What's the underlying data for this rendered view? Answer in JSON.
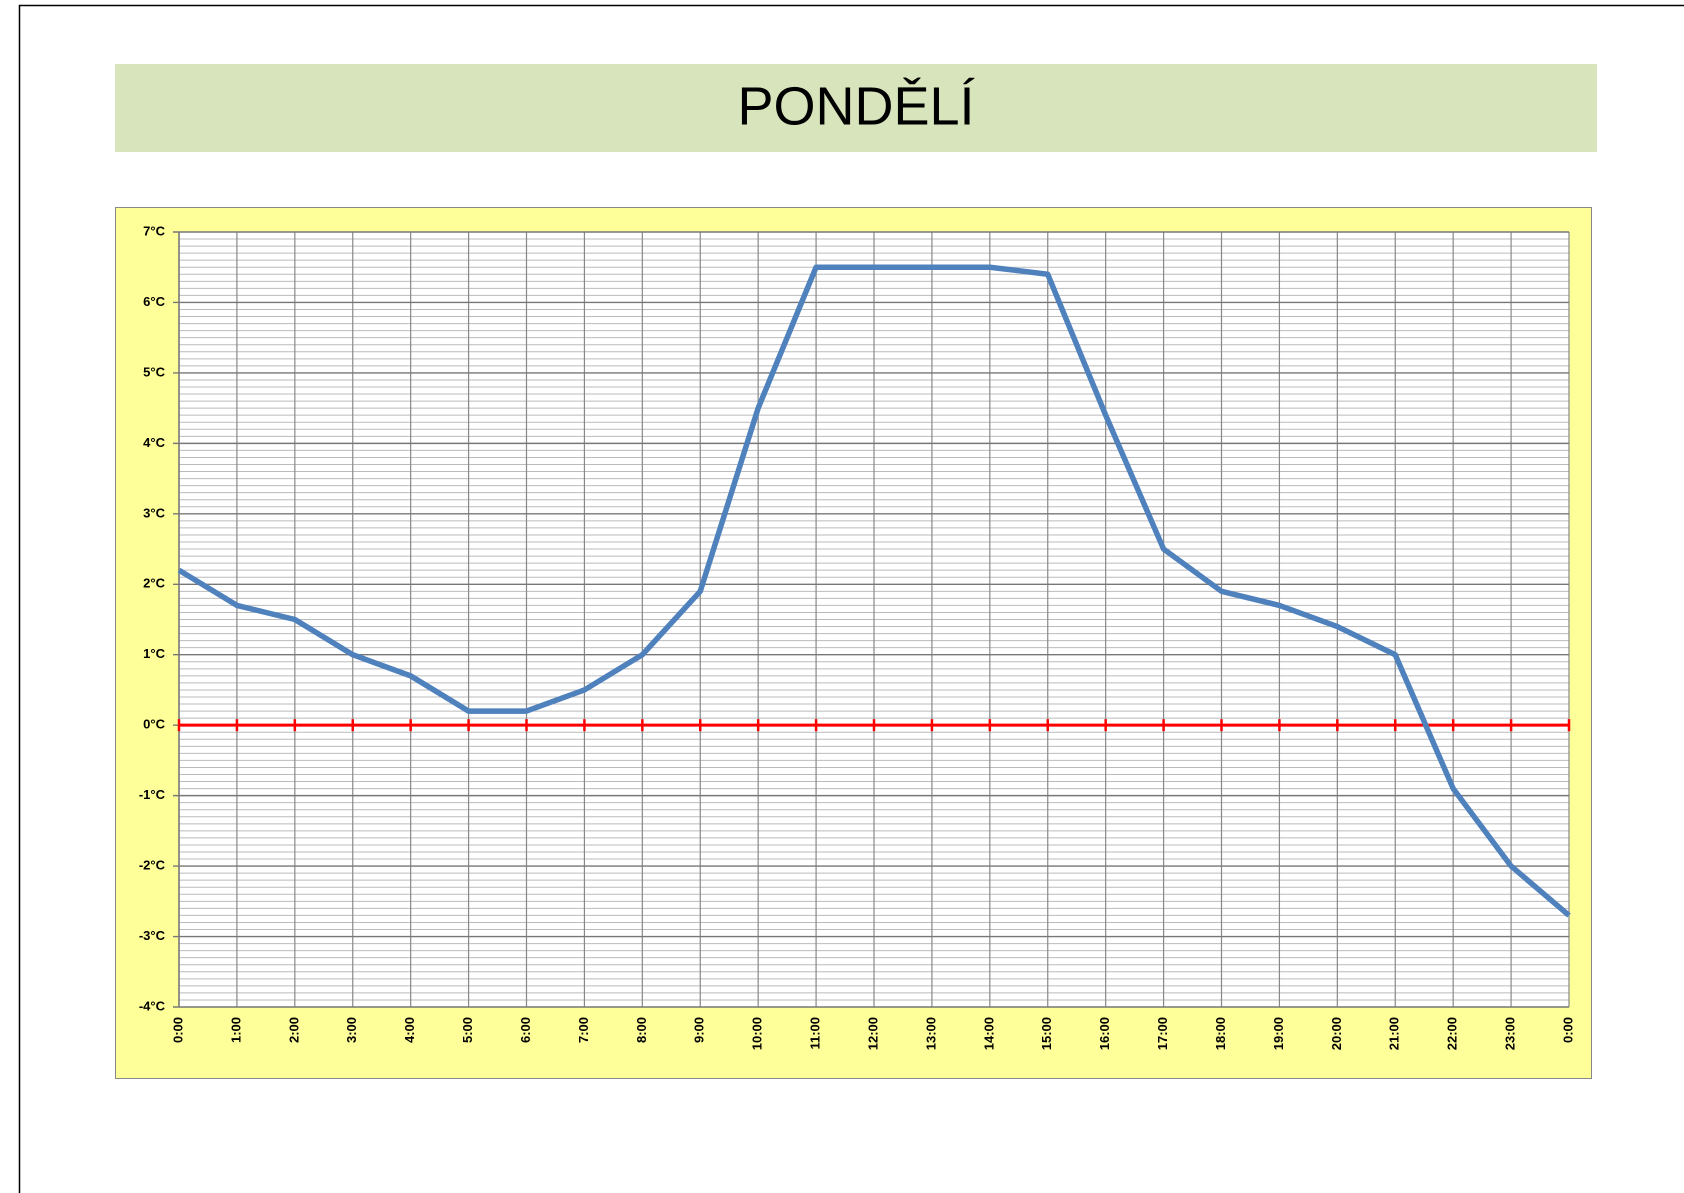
{
  "chart_data": {
    "type": "line",
    "title": "PONDĚLÍ",
    "categories": [
      "0:00",
      "1:00",
      "2:00",
      "3:00",
      "4:00",
      "5:00",
      "6:00",
      "7:00",
      "8:00",
      "9:00",
      "10:00",
      "11:00",
      "12:00",
      "13:00",
      "14:00",
      "15:00",
      "16:00",
      "17:00",
      "18:00",
      "19:00",
      "20:00",
      "21:00",
      "22:00",
      "23:00",
      "0:00"
    ],
    "series": [
      {
        "color": "#4f81bd",
        "values": [
          2.2,
          1.7,
          1.5,
          1.0,
          0.7,
          0.2,
          0.2,
          0.5,
          1.0,
          1.9,
          4.5,
          6.5,
          6.5,
          6.5,
          6.5,
          6.4,
          4.4,
          2.5,
          1.9,
          1.7,
          1.4,
          1.0,
          -0.9,
          -2.0,
          -2.7
        ]
      }
    ],
    "ylim": [
      -4,
      7
    ],
    "yticks": [
      {
        "value": -4,
        "label": "-4°C"
      },
      {
        "value": -3,
        "label": "-3°C"
      },
      {
        "value": -2,
        "label": "-2°C"
      },
      {
        "value": -1,
        "label": "-1°C"
      },
      {
        "value": 0,
        "label": "0°C"
      },
      {
        "value": 1,
        "label": "1°C"
      },
      {
        "value": 2,
        "label": "2°C"
      },
      {
        "value": 3,
        "label": "3°C"
      },
      {
        "value": 4,
        "label": "4°C"
      },
      {
        "value": 5,
        "label": "5°C"
      },
      {
        "value": 6,
        "label": "6°C"
      },
      {
        "value": 7,
        "label": "7°C"
      }
    ],
    "grid": true,
    "minor_divisions": 10,
    "x_axis_color": "#ff0000",
    "plot_background": "#ffff99",
    "title_background": "#d8e4bc"
  }
}
